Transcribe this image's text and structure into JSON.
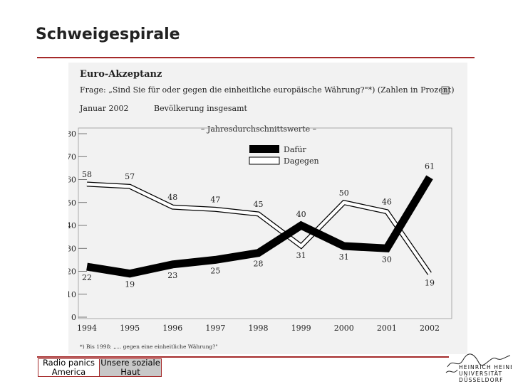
{
  "slide": {
    "title": "Schweigespirale"
  },
  "chart_data": {
    "type": "line",
    "title": "Euro-Akzeptanz",
    "question": "Frage: „Sind Sie für oder gegen die einheitliche europäische Währung?\"*) (Zahlen in Prozent)",
    "date_label": "Januar 2002",
    "population_label": "Bevölkerung insgesamt",
    "subtitle": "– Jahresdurchschnittswerte –",
    "categories": [
      "1994",
      "1995",
      "1996",
      "1997",
      "1998",
      "1999",
      "2000",
      "2001",
      "2002"
    ],
    "series": [
      {
        "name": "Dafür",
        "values": [
          22,
          19,
          23,
          25,
          28,
          40,
          31,
          30,
          61
        ],
        "color": "#000000",
        "style": "thick-solid"
      },
      {
        "name": "Dagegen",
        "values": [
          58,
          57,
          48,
          47,
          45,
          31,
          50,
          46,
          19
        ],
        "color": "#ffffff",
        "style": "hollow"
      }
    ],
    "ylim": [
      0,
      80
    ],
    "yticks": [
      "0",
      "10",
      "20",
      "30",
      "40",
      "50",
      "60",
      "70",
      "80"
    ],
    "legend_position": "top-right",
    "footnote": "*) Bis 1998: „... gegen eine einheitliche Währung?\""
  },
  "footer": {
    "tabs": [
      {
        "label": "Radio panics America",
        "active": false
      },
      {
        "label": "Unsere soziale Haut",
        "active": true
      }
    ]
  },
  "logo": {
    "lines": [
      "HEINRICH HEINE",
      "UNIVERSITÄT",
      "DÜSSELDORF"
    ]
  }
}
